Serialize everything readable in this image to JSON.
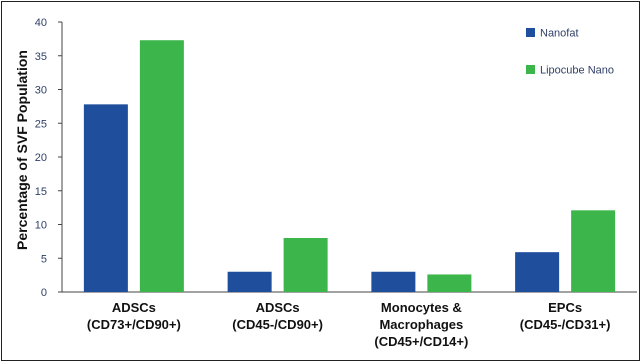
{
  "chart_data": {
    "type": "bar",
    "title": "",
    "xlabel": "",
    "ylabel": "Percentage of SVF Population",
    "ylim": [
      0,
      40
    ],
    "yticks": [
      0,
      5,
      10,
      15,
      20,
      25,
      30,
      35,
      40
    ],
    "grid": false,
    "legend_position": "top-right",
    "categories": [
      [
        "ADSCs",
        "(CD73+/CD90+)"
      ],
      [
        "ADSCs",
        "(CD45-/CD90+)"
      ],
      [
        "Monocytes &",
        "Macrophages",
        "(CD45+/CD14+)"
      ],
      [
        "EPCs",
        "(CD45-/CD31+)"
      ]
    ],
    "series": [
      {
        "name": "Nanofat",
        "color": "#1f4e9c",
        "values": [
          27.8,
          3.0,
          3.0,
          5.9
        ]
      },
      {
        "name": "Lipocube Nano",
        "color": "#3cb54a",
        "values": [
          37.3,
          8.0,
          2.6,
          12.1
        ]
      }
    ]
  }
}
